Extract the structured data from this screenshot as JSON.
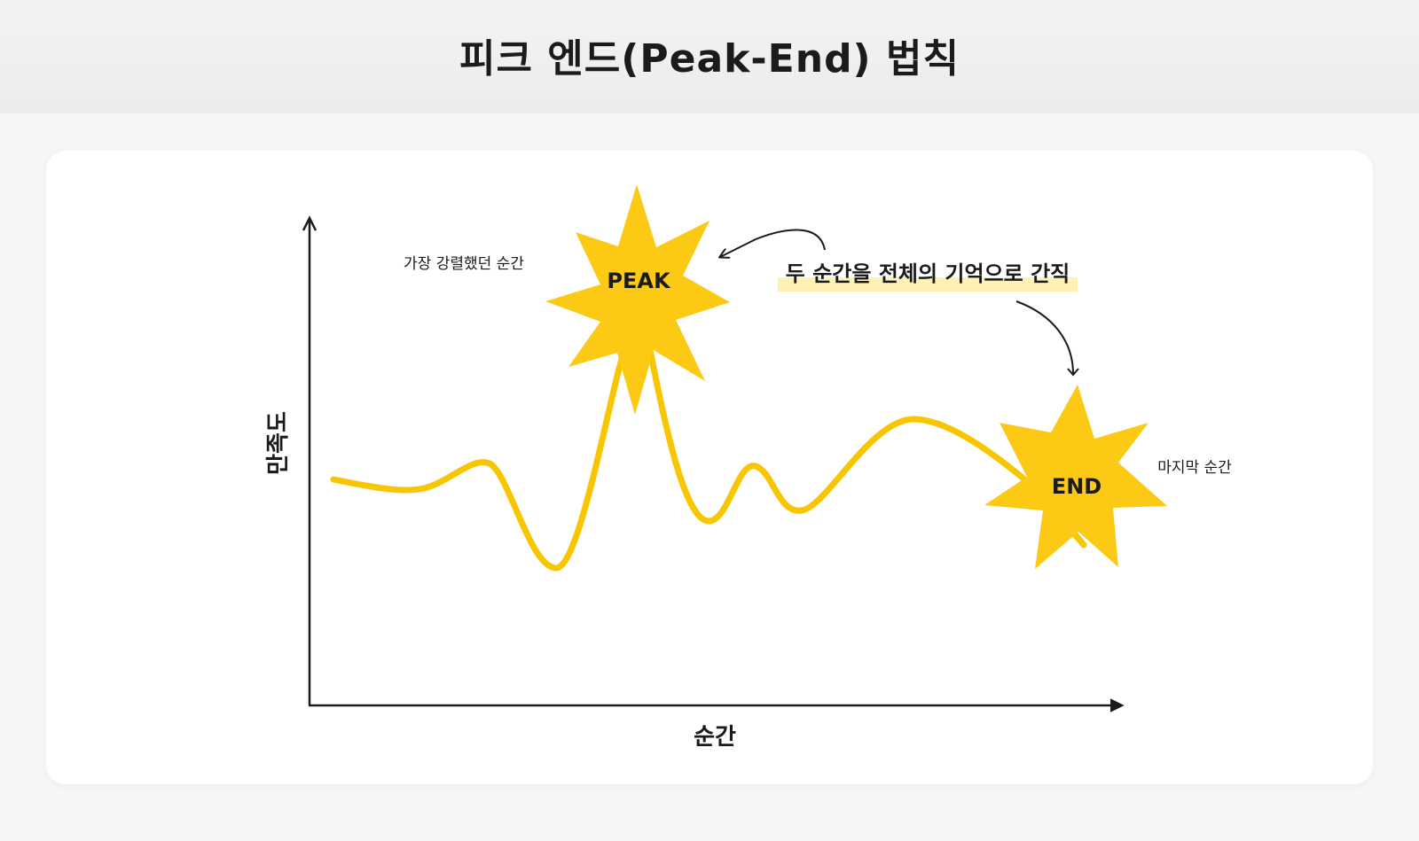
{
  "title": "피크 엔드(Peak-End) 법칙",
  "diagram": {
    "y_axis_label": "만족도",
    "x_axis_label": "순간",
    "peak_label": "PEAK",
    "peak_note": "가장 강렬했던 순간",
    "end_label": "END",
    "end_note": "마지막 순간",
    "callout": "두 순간을 전체의 기억으로 간직"
  },
  "colors": {
    "curve": "#f7c600",
    "star": "#fcc915",
    "highlight": "#fff1b3",
    "text": "#1b1b1b"
  }
}
